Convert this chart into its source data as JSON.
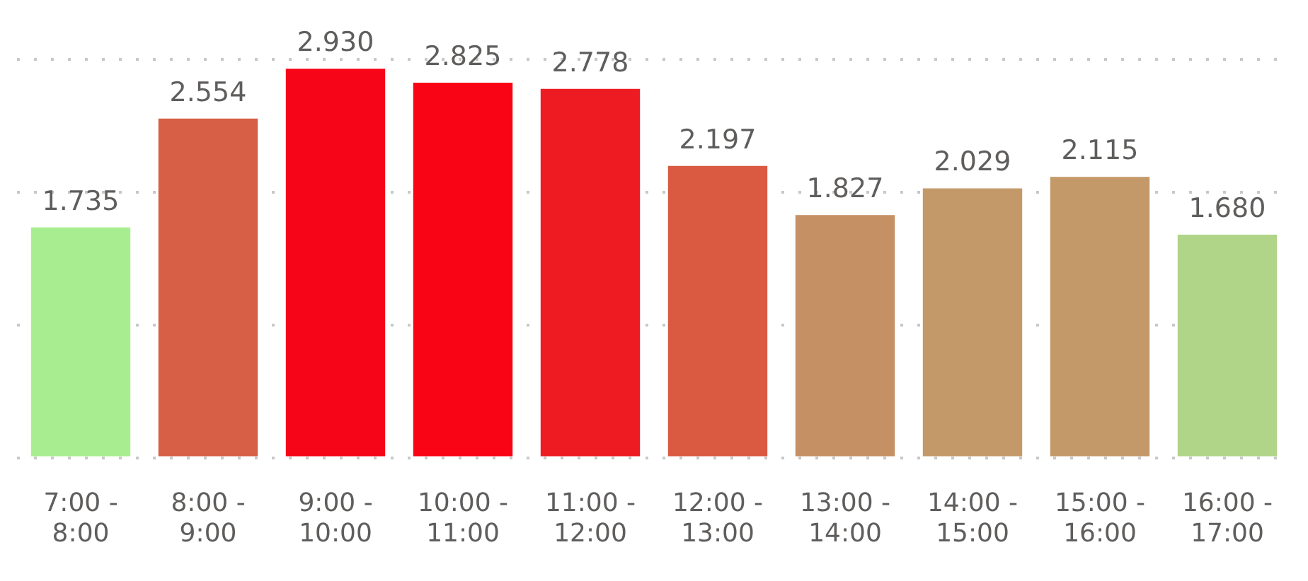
{
  "chart_data": {
    "type": "bar",
    "categories": [
      "7:00 - 8:00",
      "8:00 - 9:00",
      "9:00 - 10:00",
      "10:00 - 11:00",
      "11:00 - 12:00",
      "12:00 - 13:00",
      "13:00 - 14:00",
      "14:00 - 15:00",
      "15:00 - 16:00",
      "16:00 - 17:00"
    ],
    "values": [
      1.735,
      2.554,
      2.93,
      2.825,
      2.778,
      2.197,
      1.827,
      2.029,
      2.115,
      1.68
    ],
    "value_labels": [
      "1.735",
      "2.554",
      "2.930",
      "2.825",
      "2.778",
      "2.197",
      "1.827",
      "2.029",
      "2.115",
      "1.680"
    ],
    "colors": [
      "#a8ee90",
      "#d65f45",
      "#f50517",
      "#f80415",
      "#ee1c22",
      "#d95941",
      "#c59063",
      "#c4996a",
      "#c4996a",
      "#b0d589"
    ],
    "ylim": [
      0,
      3
    ],
    "yticks": [
      {
        "value": 0,
        "label": null
      },
      {
        "value": 1,
        "label": null
      },
      {
        "value": 2,
        "label": null
      },
      {
        "value": 3,
        "label": null
      }
    ],
    "grid": "y",
    "tick_labels": "x"
  }
}
